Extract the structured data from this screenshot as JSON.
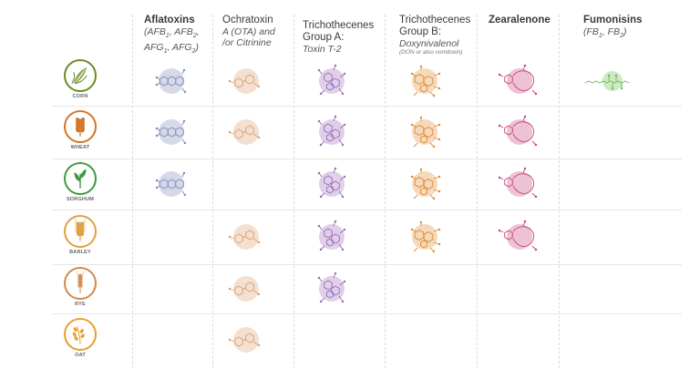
{
  "columns": [
    {
      "key": "aflatoxins",
      "title": "Aflatoxins",
      "sub_html": "(AFB<sub>1</sub>, AFB<sub>2</sub>,<br>AFG<sub>1</sub>, AFG<sub>2</sub>)",
      "note": ""
    },
    {
      "key": "ochratoxin",
      "title": "Ochratoxin",
      "sub_html": "A (OTA) and<br>/or Citrinine",
      "note": ""
    },
    {
      "key": "trich_a",
      "title": "Trichothecenes Group A:",
      "sub_html": "Toxin T-2",
      "note": ""
    },
    {
      "key": "trich_b",
      "title": "Trichothecenes Group B:",
      "sub_html": "Doxynivalenol",
      "note": "(DON or also vomitoxin)"
    },
    {
      "key": "zearalenone",
      "title": "Zearalenone",
      "sub_html": "",
      "note": ""
    },
    {
      "key": "fumonisins",
      "title": "Fumonisins",
      "sub_html": "(FB<sub>1</sub>, FB<sub>2</sub>)",
      "note": ""
    }
  ],
  "grains": [
    {
      "name": "CORN",
      "color": "#6a8a2a",
      "icon": "corn-icon",
      "toxins": [
        "aflatoxins",
        "ochratoxin",
        "trich_a",
        "trich_b",
        "zearalenone",
        "fumonisins"
      ]
    },
    {
      "name": "WHEAT",
      "color": "#d2762a",
      "icon": "wheat-icon",
      "toxins": [
        "aflatoxins",
        "ochratoxin",
        "trich_a",
        "trich_b",
        "zearalenone"
      ]
    },
    {
      "name": "SORGHUM",
      "color": "#3f9a3f",
      "icon": "sorghum-icon",
      "toxins": [
        "aflatoxins",
        "trich_a",
        "trich_b",
        "zearalenone"
      ]
    },
    {
      "name": "BARLEY",
      "color": "#e0a040",
      "icon": "barley-icon",
      "toxins": [
        "ochratoxin",
        "trich_a",
        "trich_b",
        "zearalenone"
      ]
    },
    {
      "name": "RYE",
      "color": "#d08a50",
      "icon": "rye-icon",
      "toxins": [
        "ochratoxin",
        "trich_a"
      ]
    },
    {
      "name": "OAT",
      "color": "#e8a030",
      "icon": "oat-icon",
      "toxins": [
        "ochratoxin"
      ]
    }
  ],
  "colors": {
    "aflatoxins": "#7f88b8",
    "ochratoxin": "#d9a070",
    "trich_a": "#9a6ab8",
    "trich_b": "#e08a30",
    "zearalenone": "#c8407a",
    "fumonisins": "#6ab84a"
  }
}
